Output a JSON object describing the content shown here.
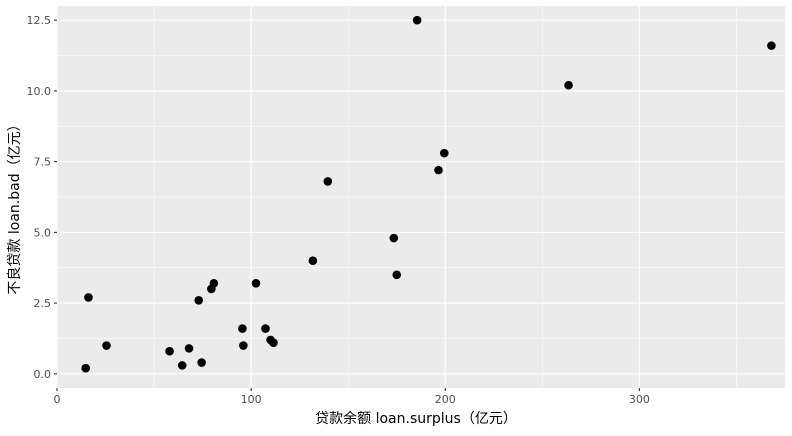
{
  "chart_data": {
    "type": "scatter",
    "title": "",
    "xlabel": "贷款余额 loan.surplus（亿元）",
    "ylabel": "不良贷款 loan.bad（亿元）",
    "xlim": [
      0,
      375
    ],
    "ylim": [
      -0.5,
      13
    ],
    "x_ticks": [
      0,
      100,
      200,
      300
    ],
    "x_tick_labels": [
      "0",
      "100",
      "200",
      "300"
    ],
    "y_ticks": [
      0,
      2.5,
      5,
      7.5,
      10,
      12.5
    ],
    "y_tick_labels": [
      "0.0",
      "2.5",
      "5.0",
      "7.5",
      "10.0",
      "12.5"
    ],
    "grid": true,
    "panel_background": "#ebebeb",
    "grid_color": "#ffffff",
    "point_color": "#000000",
    "points": [
      {
        "x": 14.8,
        "y": 0.2
      },
      {
        "x": 16.2,
        "y": 2.7
      },
      {
        "x": 25.5,
        "y": 1.0
      },
      {
        "x": 58.0,
        "y": 0.8
      },
      {
        "x": 64.5,
        "y": 0.3
      },
      {
        "x": 68.0,
        "y": 0.9
      },
      {
        "x": 73.0,
        "y": 2.6
      },
      {
        "x": 74.5,
        "y": 0.4
      },
      {
        "x": 79.5,
        "y": 3.0
      },
      {
        "x": 80.8,
        "y": 3.2
      },
      {
        "x": 95.5,
        "y": 1.6
      },
      {
        "x": 96.0,
        "y": 1.0
      },
      {
        "x": 102.5,
        "y": 3.2
      },
      {
        "x": 107.4,
        "y": 1.6
      },
      {
        "x": 110.0,
        "y": 1.2
      },
      {
        "x": 111.5,
        "y": 1.1
      },
      {
        "x": 131.8,
        "y": 4.0
      },
      {
        "x": 139.5,
        "y": 6.8
      },
      {
        "x": 173.5,
        "y": 4.8
      },
      {
        "x": 175.0,
        "y": 3.5
      },
      {
        "x": 185.5,
        "y": 12.5
      },
      {
        "x": 196.5,
        "y": 7.2
      },
      {
        "x": 199.5,
        "y": 7.8
      },
      {
        "x": 263.5,
        "y": 10.2
      },
      {
        "x": 368.0,
        "y": 11.6
      }
    ]
  }
}
